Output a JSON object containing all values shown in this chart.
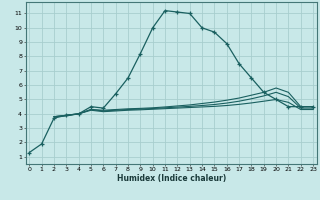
{
  "xlabel": "Humidex (Indice chaleur)",
  "bg_color": "#c8e8e8",
  "grid_color": "#a8cece",
  "line_color": "#1a6060",
  "x_ticks": [
    0,
    1,
    2,
    3,
    4,
    5,
    6,
    7,
    8,
    9,
    10,
    11,
    12,
    13,
    14,
    15,
    16,
    17,
    18,
    19,
    20,
    21,
    22,
    23
  ],
  "y_ticks": [
    1,
    2,
    3,
    4,
    5,
    6,
    7,
    8,
    9,
    10,
    11
  ],
  "ylim": [
    0.5,
    11.8
  ],
  "xlim": [
    -0.3,
    23.3
  ],
  "lines": [
    {
      "x": [
        0,
        1,
        2,
        3,
        4,
        5,
        6,
        7,
        8,
        9,
        10,
        11,
        12,
        13,
        14,
        15,
        16,
        17,
        18,
        19,
        20,
        21,
        22,
        23
      ],
      "y": [
        1.3,
        1.9,
        3.7,
        3.9,
        4.0,
        4.5,
        4.4,
        5.4,
        6.5,
        8.2,
        10.0,
        11.2,
        11.1,
        11.0,
        10.0,
        9.7,
        8.9,
        7.5,
        6.5,
        5.5,
        5.0,
        4.5,
        4.5,
        4.5
      ],
      "marker": "+"
    },
    {
      "x": [
        2,
        3,
        4,
        5,
        6,
        7,
        8,
        9,
        10,
        11,
        12,
        13,
        14,
        15,
        16,
        17,
        18,
        19,
        20,
        21,
        22,
        23
      ],
      "y": [
        3.8,
        3.9,
        4.0,
        4.3,
        4.25,
        4.3,
        4.35,
        4.38,
        4.42,
        4.48,
        4.55,
        4.62,
        4.72,
        4.82,
        4.95,
        5.1,
        5.3,
        5.5,
        5.8,
        5.5,
        4.5,
        4.5
      ],
      "marker": null
    },
    {
      "x": [
        2,
        3,
        4,
        5,
        6,
        7,
        8,
        9,
        10,
        11,
        12,
        13,
        14,
        15,
        16,
        17,
        18,
        19,
        20,
        21,
        22,
        23
      ],
      "y": [
        3.8,
        3.9,
        4.0,
        4.3,
        4.2,
        4.25,
        4.3,
        4.33,
        4.37,
        4.42,
        4.47,
        4.52,
        4.58,
        4.65,
        4.75,
        4.88,
        5.05,
        5.25,
        5.5,
        5.2,
        4.4,
        4.4
      ],
      "marker": null
    },
    {
      "x": [
        2,
        3,
        4,
        5,
        6,
        7,
        8,
        9,
        10,
        11,
        12,
        13,
        14,
        15,
        16,
        17,
        18,
        19,
        20,
        21,
        22,
        23
      ],
      "y": [
        3.8,
        3.85,
        4.0,
        4.25,
        4.15,
        4.2,
        4.25,
        4.28,
        4.32,
        4.36,
        4.4,
        4.44,
        4.48,
        4.52,
        4.58,
        4.66,
        4.76,
        4.88,
        5.0,
        4.8,
        4.3,
        4.3
      ],
      "marker": null
    }
  ]
}
